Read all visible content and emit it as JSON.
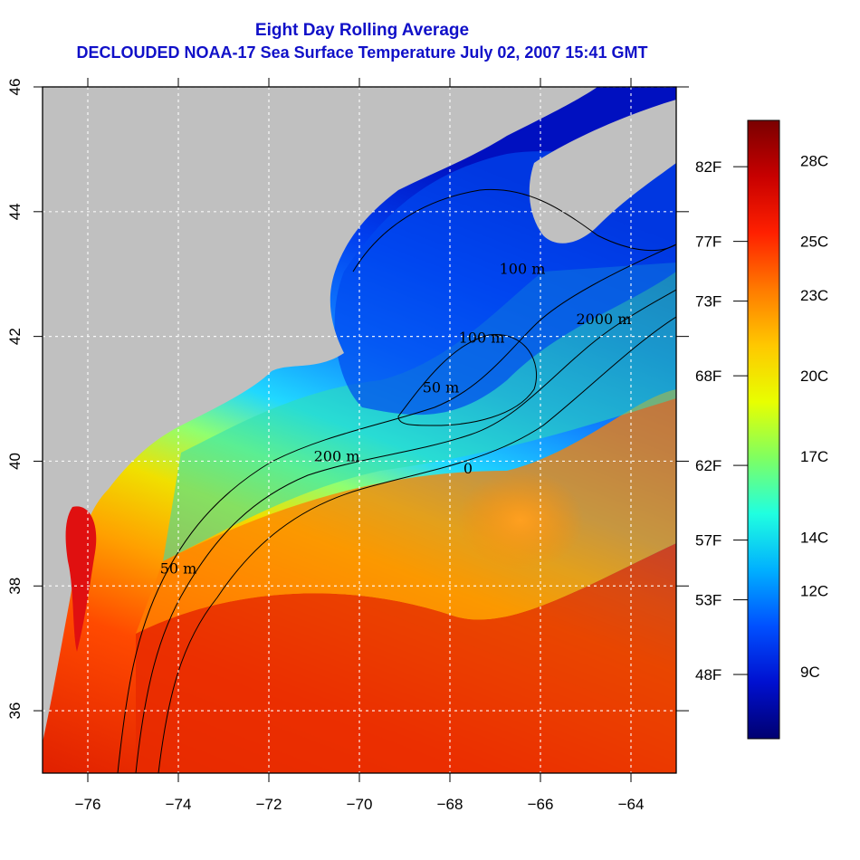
{
  "title": {
    "line1": "Eight Day Rolling Average",
    "line2": "DECLOUDED NOAA-17 Sea Surface Temperature July 02, 2007 15:41 GMT"
  },
  "map": {
    "lon_range": [
      -77,
      -63
    ],
    "lat_range": [
      35,
      46
    ],
    "x_ticks": [
      -76,
      -74,
      -72,
      -70,
      -68,
      -66,
      -64
    ],
    "x_tick_labels": [
      "−76",
      "−74",
      "−72",
      "−70",
      "−68",
      "−66",
      "−64"
    ],
    "y_ticks": [
      36,
      38,
      40,
      42,
      44,
      46
    ],
    "y_tick_labels": [
      "36",
      "38",
      "40",
      "42",
      "44",
      "46"
    ],
    "contour_labels": [
      {
        "text": "50 m",
        "lon": -74.0,
        "lat": 38.2
      },
      {
        "text": "200 m",
        "lon": -70.5,
        "lat": 40.0
      },
      {
        "text": "100 m",
        "lon": -66.4,
        "lat": 43.0
      },
      {
        "text": "2000 m",
        "lon": -64.6,
        "lat": 42.2
      },
      {
        "text": "100 m",
        "lon": -67.3,
        "lat": 41.9
      },
      {
        "text": "50 m",
        "lon": -68.2,
        "lat": 41.1
      },
      {
        "text": "0",
        "lon": -67.6,
        "lat": 39.8
      }
    ],
    "colors": {
      "land": "#c0c0c0",
      "grid": "#ffffff"
    }
  },
  "colorbar": {
    "celsius_labels": [
      "28C",
      "25C",
      "23C",
      "20C",
      "17C",
      "14C",
      "12C",
      "9C"
    ],
    "celsius_values": [
      28,
      25,
      23,
      20,
      17,
      14,
      12,
      9
    ],
    "fahrenheit_labels": [
      "82F",
      "77F",
      "73F",
      "68F",
      "62F",
      "57F",
      "53F",
      "48F"
    ],
    "fahrenheit_values": [
      82,
      77,
      73,
      68,
      62,
      57,
      53,
      48
    ],
    "range_c": [
      6.5,
      29.5
    ],
    "gradient_colors": [
      "#7a0000",
      "#c80000",
      "#ff2000",
      "#ff7a00",
      "#ffc800",
      "#e8ff00",
      "#80ff60",
      "#20ffe0",
      "#00b0ff",
      "#0050ff",
      "#0010d0",
      "#000070"
    ]
  }
}
